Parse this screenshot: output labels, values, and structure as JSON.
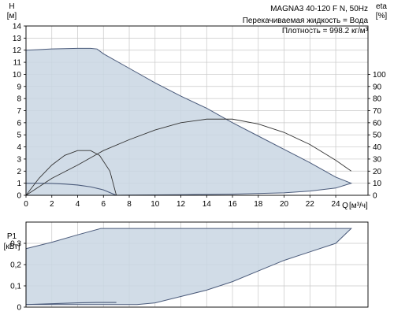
{
  "chart_data": [
    {
      "type": "line",
      "model": "MAGNA3 40-120 F N, 50Hz",
      "notes": [
        "Перекачиваемая жидкость = Вода",
        "Плотность = 998.2 кг/м³"
      ],
      "xlabel": "Q",
      "xunit": "[м³/ч]",
      "ylabel": "H",
      "yunit": "[м]",
      "y2label": "eta",
      "y2unit": "[%]",
      "xlim": [
        0,
        26.5
      ],
      "ylim": [
        0,
        14
      ],
      "y2lim": [
        0,
        140
      ],
      "xticks": [
        0,
        2,
        4,
        6,
        8,
        10,
        12,
        14,
        16,
        18,
        20,
        22,
        24
      ],
      "yticks": [
        0,
        1,
        2,
        3,
        4,
        5,
        6,
        7,
        8,
        9,
        10,
        11,
        12,
        13,
        14
      ],
      "y2ticks": [
        0,
        10,
        20,
        30,
        40,
        50,
        60,
        70,
        80,
        90,
        100
      ],
      "fill_color": "#c9d6e3",
      "line_color": "#4a5a7a",
      "envelope": [
        [
          0,
          12.0
        ],
        [
          1,
          12.05
        ],
        [
          2,
          12.1
        ],
        [
          3,
          12.13
        ],
        [
          4,
          12.15
        ],
        [
          5,
          12.15
        ],
        [
          5.5,
          12.1
        ],
        [
          6,
          11.7
        ],
        [
          8,
          10.5
        ],
        [
          10,
          9.3
        ],
        [
          12,
          8.2
        ],
        [
          14,
          7.2
        ],
        [
          16,
          6.0
        ],
        [
          18,
          4.9
        ],
        [
          20,
          3.8
        ],
        [
          22,
          2.7
        ],
        [
          24,
          1.5
        ],
        [
          25.2,
          1.0
        ],
        [
          24,
          0.6
        ],
        [
          22,
          0.35
        ],
        [
          20,
          0.2
        ],
        [
          16,
          0.1
        ],
        [
          12,
          0.05
        ],
        [
          8,
          0.02
        ],
        [
          6.9,
          0.0
        ],
        [
          0,
          0.0
        ]
      ],
      "min_curve": [
        [
          0,
          1.0
        ],
        [
          1,
          1.0
        ],
        [
          2,
          0.98
        ],
        [
          3,
          0.93
        ],
        [
          4,
          0.85
        ],
        [
          5,
          0.7
        ],
        [
          6,
          0.45
        ],
        [
          7,
          0.0
        ]
      ],
      "eta_curves": [
        {
          "points": [
            [
              0,
              0
            ],
            [
              1,
              14
            ],
            [
              2,
              25
            ],
            [
              3,
              33
            ],
            [
              4,
              37
            ],
            [
              5,
              37
            ],
            [
              5.7,
              33
            ],
            [
              6.5,
              20
            ],
            [
              7,
              0
            ]
          ]
        },
        {
          "points": [
            [
              0,
              0
            ],
            [
              2,
              14
            ],
            [
              4,
              25
            ],
            [
              6,
              37
            ],
            [
              8,
              46
            ],
            [
              10,
              54
            ],
            [
              12,
              60
            ],
            [
              14,
              63
            ],
            [
              16,
              63
            ],
            [
              18,
              59
            ],
            [
              20,
              52
            ],
            [
              22,
              42
            ],
            [
              24,
              29
            ],
            [
              25.2,
              20
            ]
          ]
        }
      ]
    },
    {
      "type": "area",
      "ylabel": "P1",
      "yunit": "[кВт]",
      "xlim": [
        0,
        26.5
      ],
      "ylim": [
        0,
        0.4
      ],
      "yticks": [
        0,
        0.1,
        0.2,
        0.3
      ],
      "yticklabels": [
        "0",
        "0,1",
        "0,2",
        "0,3"
      ],
      "fill_color": "#c9d6e3",
      "line_color": "#4a5a7a",
      "envelope": [
        [
          0,
          0.275
        ],
        [
          2,
          0.305
        ],
        [
          4,
          0.34
        ],
        [
          5.8,
          0.37
        ],
        [
          25.2,
          0.37
        ],
        [
          24,
          0.3
        ],
        [
          22,
          0.26
        ],
        [
          20,
          0.22
        ],
        [
          18,
          0.17
        ],
        [
          16,
          0.12
        ],
        [
          14,
          0.08
        ],
        [
          12,
          0.05
        ],
        [
          10,
          0.02
        ],
        [
          8.6,
          0.012
        ],
        [
          7,
          0.012
        ],
        [
          0,
          0.012
        ]
      ],
      "min_curve": [
        [
          0,
          0.012
        ],
        [
          2,
          0.016
        ],
        [
          4,
          0.02
        ],
        [
          5.5,
          0.022
        ],
        [
          7,
          0.022
        ]
      ]
    }
  ]
}
